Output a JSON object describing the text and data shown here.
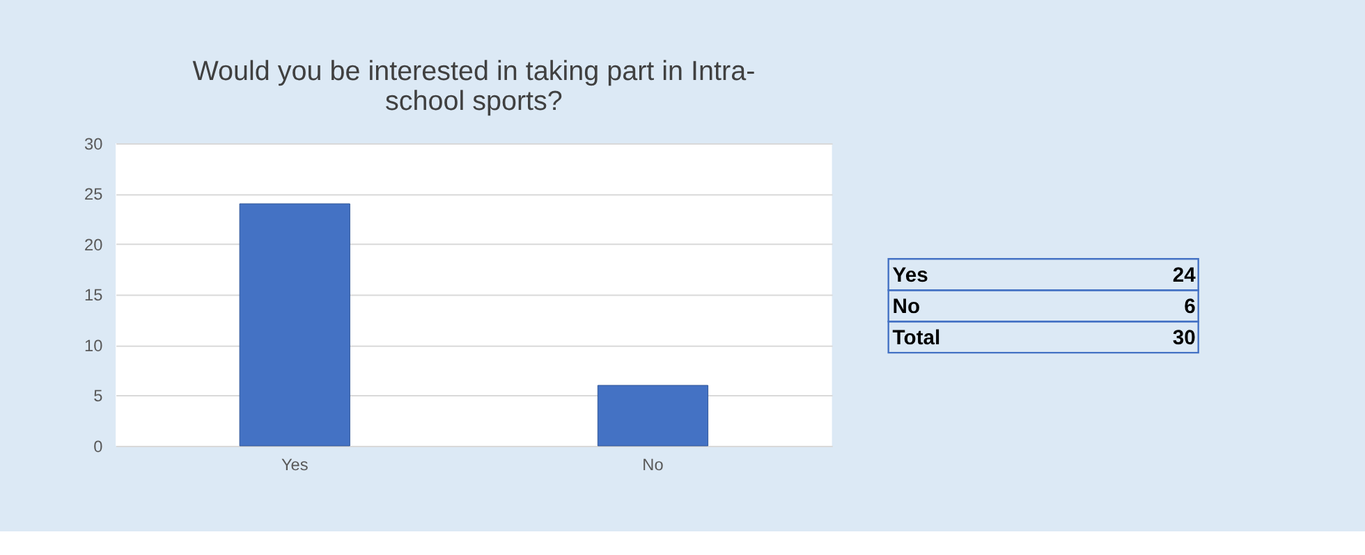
{
  "chart_data": {
    "type": "bar",
    "title": "Would you be interested in taking part in Intra-school sports?",
    "categories": [
      "Yes",
      "No"
    ],
    "values": [
      24,
      6
    ],
    "color": "#4472c4",
    "ylim": [
      0,
      30
    ],
    "yticks": [
      0,
      5,
      10,
      15,
      20,
      25,
      30
    ],
    "grid": "y",
    "annotations": [
      "Yes",
      "24",
      "No",
      "6",
      "Total",
      "30"
    ]
  }
}
